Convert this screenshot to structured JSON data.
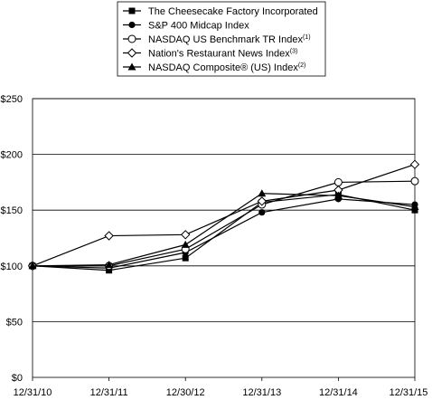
{
  "chart_data": {
    "type": "line",
    "title": "",
    "xlabel": "",
    "ylabel": "",
    "categories": [
      "12/31/10",
      "12/31/11",
      "12/30/12",
      "12/31/13",
      "12/31/14",
      "12/31/15"
    ],
    "ylim": [
      0,
      250
    ],
    "yticks": [
      0,
      50,
      100,
      150,
      200,
      250
    ],
    "ytick_labels": [
      "$0",
      "$50",
      "$100",
      "$150",
      "$200",
      "$250"
    ],
    "grid": "horizontal",
    "legend_position": "top",
    "series": [
      {
        "name": "The Cheesecake Factory Incorporated",
        "superscript": "",
        "marker": "square-filled",
        "values": [
          100,
          96,
          107,
          157,
          164,
          150
        ]
      },
      {
        "name": "S&P 400 Midcap Index",
        "superscript": "",
        "marker": "circle-filled",
        "values": [
          100,
          98,
          112,
          148,
          160,
          155
        ]
      },
      {
        "name": "NASDAQ US Benchmark TR Index",
        "superscript": "(1)",
        "marker": "circle-open",
        "values": [
          100,
          100,
          115,
          155,
          175,
          176
        ]
      },
      {
        "name": "Nation's Restaurant News Index",
        "superscript": "(3)",
        "marker": "diamond-open",
        "values": [
          100,
          127,
          128,
          158,
          168,
          191
        ]
      },
      {
        "name": "NASDAQ Composite® (US) Index",
        "superscript": "(2)",
        "marker": "triangle-filled",
        "values": [
          100,
          101,
          119,
          165,
          163,
          153
        ]
      }
    ]
  }
}
